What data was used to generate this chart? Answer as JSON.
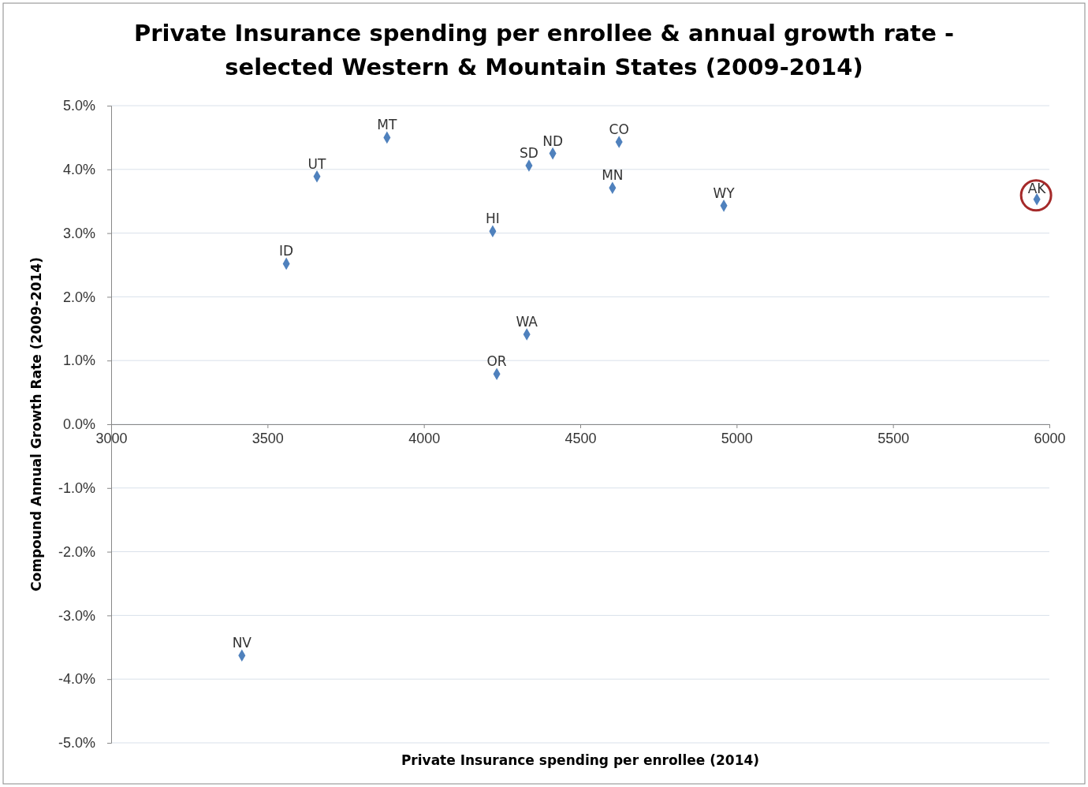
{
  "chart_data": {
    "type": "scatter",
    "title": "Private Insurance spending per enrollee & annual growth rate - selected Western & Mountain States (2009-2014)",
    "xlabel": "Private Insurance spending per enrollee (2014)",
    "ylabel": "Compound Annual Growth Rate (2009-2014)",
    "xlim": [
      3000,
      6000
    ],
    "xticks": [
      3000,
      3500,
      4000,
      4500,
      5000,
      5500,
      6000
    ],
    "ylim": [
      -5,
      5
    ],
    "yticks": [
      {
        "value": -5,
        "label": "-5.0%"
      },
      {
        "value": -4,
        "label": "-4.0%"
      },
      {
        "value": -3,
        "label": "-3.0%"
      },
      {
        "value": -2,
        "label": "-2.0%"
      },
      {
        "value": -1,
        "label": "-1.0%"
      },
      {
        "value": 0,
        "label": "0.0%"
      },
      {
        "value": 1,
        "label": "1.0%"
      },
      {
        "value": 2,
        "label": "2.0%"
      },
      {
        "value": 3,
        "label": "3.0%"
      },
      {
        "value": 4,
        "label": "4.0%"
      },
      {
        "value": 5,
        "label": "5.0%"
      }
    ],
    "grid": "y",
    "marker": "diamond",
    "series": [
      {
        "name": "MT",
        "color": "#4f81bd",
        "x": [
          3882
        ],
        "values": [
          4.5
        ]
      },
      {
        "name": "UT",
        "color": "#4f81bd",
        "x": [
          3658
        ],
        "values": [
          3.89
        ]
      },
      {
        "name": "ID",
        "color": "#4f81bd",
        "x": [
          3560
        ],
        "values": [
          2.52
        ]
      },
      {
        "name": "HI",
        "color": "#4f81bd",
        "x": [
          4220
        ],
        "values": [
          3.03
        ]
      },
      {
        "name": "SD",
        "color": "#4f81bd",
        "x": [
          4336
        ],
        "values": [
          4.06
        ]
      },
      {
        "name": "ND",
        "color": "#4f81bd",
        "x": [
          4412
        ],
        "values": [
          4.25
        ]
      },
      {
        "name": "CO",
        "color": "#4f81bd",
        "x": [
          4624
        ],
        "values": [
          4.43
        ]
      },
      {
        "name": "MN",
        "color": "#4f81bd",
        "x": [
          4603
        ],
        "values": [
          3.71
        ]
      },
      {
        "name": "WY",
        "color": "#4f81bd",
        "x": [
          4959
        ],
        "values": [
          3.43
        ]
      },
      {
        "name": "WA",
        "color": "#4f81bd",
        "x": [
          4329
        ],
        "values": [
          1.41
        ]
      },
      {
        "name": "OR",
        "color": "#4f81bd",
        "x": [
          4233
        ],
        "values": [
          0.79
        ]
      },
      {
        "name": "NV",
        "color": "#4f81bd",
        "x": [
          3418
        ],
        "values": [
          -3.63
        ]
      },
      {
        "color": "#4f81bd",
        "x": [
          5960
        ],
        "values": [
          3.53
        ]
      }
    ],
    "annotations": [
      {
        "text": "AK",
        "x": 5960,
        "y": 3.53
      }
    ]
  }
}
